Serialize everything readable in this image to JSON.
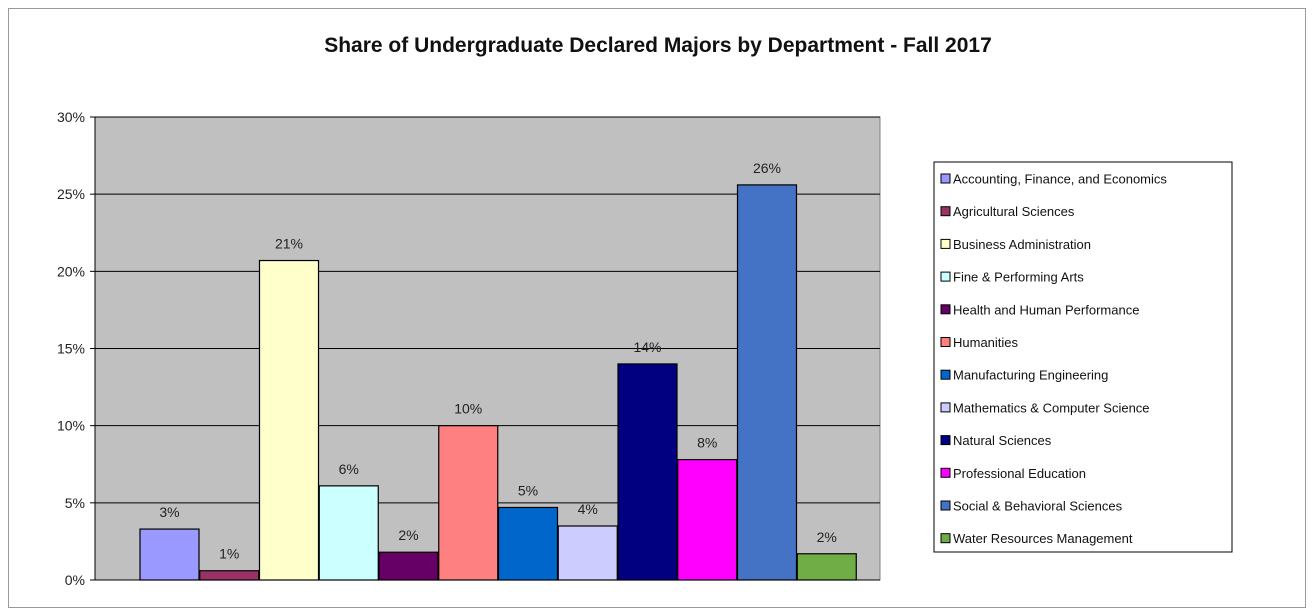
{
  "chart_data": {
    "type": "bar",
    "title": "Share of Undergraduate Declared Majors by Department - Fall 2017",
    "xlabel": "",
    "ylabel": "",
    "ylim": [
      0,
      30
    ],
    "y_ticks": [
      "0%",
      "5%",
      "10%",
      "15%",
      "20%",
      "25%",
      "30%"
    ],
    "grid": true,
    "legend_position": "right",
    "series": [
      {
        "name": "Accounting, Finance, and Economics",
        "value": 3.3,
        "label": "3%",
        "color": "#9999ff"
      },
      {
        "name": "Agricultural Sciences",
        "value": 0.6,
        "label": "1%",
        "color": "#993366"
      },
      {
        "name": "Business Administration",
        "value": 20.7,
        "label": "21%",
        "color": "#ffffcc"
      },
      {
        "name": "Fine & Performing Arts",
        "value": 6.1,
        "label": "6%",
        "color": "#ccffff"
      },
      {
        "name": "Health and Human Performance",
        "value": 1.8,
        "label": "2%",
        "color": "#660066"
      },
      {
        "name": "Humanities",
        "value": 10.0,
        "label": "10%",
        "color": "#ff8080"
      },
      {
        "name": "Manufacturing Engineering",
        "value": 4.7,
        "label": "5%",
        "color": "#0066cc"
      },
      {
        "name": "Mathematics & Computer Science",
        "value": 3.5,
        "label": "4%",
        "color": "#ccccff"
      },
      {
        "name": "Natural Sciences",
        "value": 14.0,
        "label": "14%",
        "color": "#000080"
      },
      {
        "name": "Professional Education",
        "value": 7.8,
        "label": "8%",
        "color": "#ff00ff"
      },
      {
        "name": "Social & Behavioral Sciences",
        "value": 25.6,
        "label": "26%",
        "color": "#4472c4"
      },
      {
        "name": "Water Resources Management",
        "value": 1.7,
        "label": "2%",
        "color": "#70ad47"
      }
    ],
    "plot_background": "#c0c0c0"
  }
}
